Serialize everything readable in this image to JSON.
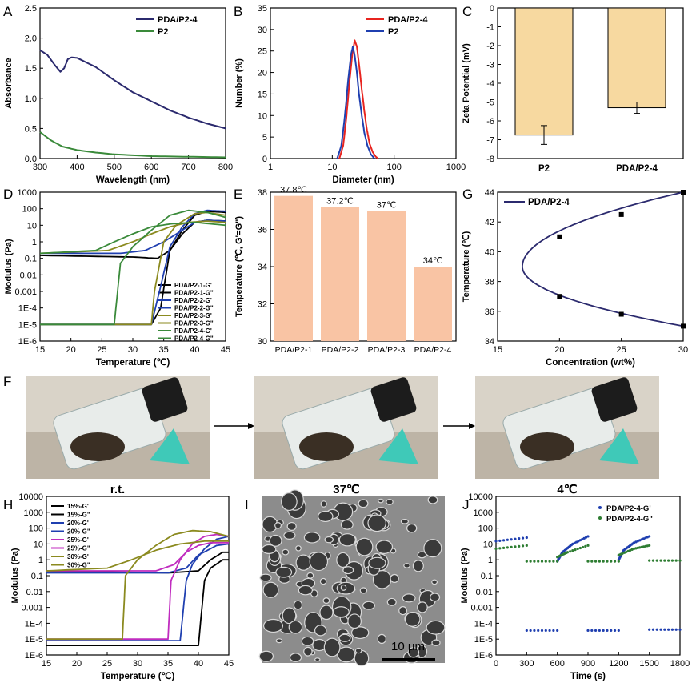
{
  "colors": {
    "bar_fill": "#f7d9a0",
    "bar_fill_e": "#f9c4a4",
    "red": "#e8241f",
    "blue": "#1f3fb0",
    "navy": "#2b2a6e",
    "green": "#3a8a3a",
    "black": "#000000",
    "olive": "#8b8a1f",
    "magenta": "#c02cbf",
    "darkgreen": "#2e7d32"
  },
  "panel_letters": {
    "A": "A",
    "B": "B",
    "C": "C",
    "D": "D",
    "E": "E",
    "F": "F",
    "G": "G",
    "H": "H",
    "I": "I",
    "J": "J"
  },
  "photo_captions": [
    "r.t.",
    "37℃",
    "4℃"
  ],
  "scale_bar": "10 μm",
  "chart_data": [
    {
      "panel": "A",
      "type": "line",
      "xlabel": "Wavelength (nm)",
      "ylabel": "Absorbance",
      "xlim": [
        300,
        800
      ],
      "ylim": [
        0,
        2.5
      ],
      "xticks": [
        "300",
        "400",
        "500",
        "600",
        "700",
        "800"
      ],
      "yticks": [
        "0.0",
        "0.5",
        "1.0",
        "1.5",
        "2.0",
        "2.5"
      ],
      "legend_position": "top-right",
      "series": [
        {
          "name": "PDA/P2-4",
          "color": "navy",
          "x": [
            300,
            320,
            340,
            355,
            365,
            375,
            385,
            400,
            450,
            500,
            550,
            600,
            650,
            700,
            750,
            800
          ],
          "y": [
            1.8,
            1.72,
            1.55,
            1.44,
            1.5,
            1.65,
            1.68,
            1.67,
            1.52,
            1.3,
            1.1,
            0.95,
            0.8,
            0.68,
            0.58,
            0.5
          ]
        },
        {
          "name": "P2",
          "color": "green",
          "x": [
            300,
            330,
            360,
            400,
            450,
            500,
            600,
            700,
            800
          ],
          "y": [
            0.44,
            0.3,
            0.2,
            0.14,
            0.1,
            0.07,
            0.04,
            0.03,
            0.02
          ]
        }
      ]
    },
    {
      "panel": "B",
      "type": "line",
      "xlabel": "Diameter (nm)",
      "ylabel": "Number (%)",
      "xscale": "log",
      "xlim": [
        1,
        1000
      ],
      "ylim": [
        0,
        35
      ],
      "xticks": [
        "1",
        "10",
        "100",
        "1000"
      ],
      "yticks": [
        "0",
        "5",
        "10",
        "15",
        "20",
        "25",
        "30",
        "35"
      ],
      "legend_position": "top-right",
      "series": [
        {
          "name": "PDA/P2-4",
          "color": "red",
          "x": [
            13,
            15,
            17,
            19,
            21,
            23,
            25,
            27,
            30,
            33,
            36,
            40,
            45,
            50,
            55
          ],
          "y": [
            0,
            3,
            10,
            18,
            24,
            27.5,
            26,
            22,
            16,
            11,
            7,
            3.5,
            1.5,
            0.5,
            0
          ]
        },
        {
          "name": "P2",
          "color": "blue",
          "x": [
            12,
            14,
            16,
            18,
            20,
            21.5,
            23,
            25,
            27,
            30,
            33,
            37,
            42,
            48
          ],
          "y": [
            0,
            3,
            10,
            18,
            24,
            26,
            24,
            20,
            15,
            10,
            6,
            3,
            1,
            0
          ]
        }
      ]
    },
    {
      "panel": "C",
      "type": "bar",
      "xlabel": "",
      "ylabel": "Zeta Potential (mV)",
      "ylim": [
        -8,
        0
      ],
      "yticks": [
        "0",
        "-1",
        "-2",
        "-3",
        "-4",
        "-5",
        "-6",
        "-7",
        "-8"
      ],
      "categories": [
        "P2",
        "PDA/P2-4"
      ],
      "values": [
        -6.75,
        -5.3
      ],
      "errors": [
        0.5,
        0.3
      ]
    },
    {
      "panel": "D",
      "type": "line",
      "xlabel": "Temperature (℃)",
      "ylabel": "Modulus (Pa)",
      "yscale": "log",
      "xlim": [
        15,
        45
      ],
      "ylim": [
        1e-06,
        1000
      ],
      "xticks": [
        "15",
        "20",
        "25",
        "30",
        "35",
        "40",
        "45"
      ],
      "yticks": [
        "1E-6",
        "1E-5",
        "1E-4",
        "0.001",
        "0.01",
        "0.1",
        "1",
        "10",
        "100",
        "1000"
      ],
      "series": [
        {
          "name": "PDA/P2-1-G'",
          "color": "black",
          "x": [
            15,
            33,
            34.5,
            36,
            38,
            40,
            42,
            45
          ],
          "y": [
            1e-05,
            1e-05,
            0.0001,
            0.3,
            5,
            40,
            70,
            60
          ]
        },
        {
          "name": "PDA/P2-1-G\"",
          "color": "black",
          "x": [
            15,
            30,
            34,
            36,
            38,
            40,
            42,
            45
          ],
          "y": [
            0.15,
            0.12,
            0.1,
            0.3,
            3,
            15,
            20,
            18
          ]
        },
        {
          "name": "PDA/P2-2-G'",
          "color": "blue",
          "x": [
            15,
            33,
            34.5,
            36,
            38,
            40,
            42,
            45
          ],
          "y": [
            1e-05,
            1e-05,
            0.002,
            0.5,
            8,
            50,
            80,
            70
          ]
        },
        {
          "name": "PDA/P2-2-G\"",
          "color": "blue",
          "x": [
            15,
            28,
            32,
            35,
            38,
            40,
            42,
            45
          ],
          "y": [
            0.2,
            0.2,
            0.3,
            1,
            5,
            15,
            20,
            18
          ]
        },
        {
          "name": "PDA/P2-3-G'",
          "color": "olive",
          "x": [
            15,
            33,
            33.5,
            35,
            37,
            40,
            42,
            45
          ],
          "y": [
            1e-05,
            1e-05,
            0.001,
            1,
            10,
            50,
            60,
            40
          ]
        },
        {
          "name": "PDA/P2-3-G\"",
          "color": "olive",
          "x": [
            15,
            26,
            30,
            33,
            36,
            39,
            42,
            45
          ],
          "y": [
            0.2,
            0.3,
            1,
            3,
            8,
            15,
            18,
            15
          ]
        },
        {
          "name": "PDA/P2-4-G'",
          "color": "green",
          "x": [
            15,
            27,
            28,
            30,
            33,
            36,
            39,
            42,
            45
          ],
          "y": [
            1e-05,
            1e-05,
            0.05,
            0.5,
            5,
            40,
            80,
            60,
            30
          ]
        },
        {
          "name": "PDA/P2-4-G\"",
          "color": "green",
          "x": [
            15,
            24,
            27,
            30,
            33,
            36,
            40,
            45
          ],
          "y": [
            0.2,
            0.3,
            1,
            3,
            8,
            12,
            15,
            10
          ]
        }
      ]
    },
    {
      "panel": "E",
      "type": "bar",
      "xlabel": "",
      "ylabel": "Temperature (℃, G'=G\")",
      "ylim": [
        30,
        38
      ],
      "yticks": [
        "30",
        "32",
        "34",
        "36",
        "38"
      ],
      "categories": [
        "PDA/P2-1",
        "PDA/P2-2",
        "PDA/P2-3",
        "PDA/P2-4"
      ],
      "values": [
        37.8,
        37.2,
        37,
        34
      ],
      "data_labels": [
        "37.8℃",
        "37.2℃",
        "37℃",
        "34℃"
      ]
    },
    {
      "panel": "G",
      "type": "line",
      "xlabel": "Concentration (wt%)",
      "ylabel": "Temperature (℃)",
      "xlim": [
        15,
        30
      ],
      "ylim": [
        34,
        44
      ],
      "xticks": [
        "15",
        "20",
        "25",
        "30"
      ],
      "yticks": [
        "34",
        "36",
        "38",
        "40",
        "42",
        "44"
      ],
      "legend_position": "top-left",
      "series": [
        {
          "name": "PDA/P2-4",
          "color": "navy",
          "points": [
            [
              20,
              41
            ],
            [
              25,
              42.5
            ],
            [
              30,
              44
            ],
            [
              20,
              37
            ],
            [
              25,
              35.8
            ],
            [
              30,
              35
            ]
          ],
          "vertex": [
            17,
            39
          ]
        }
      ]
    },
    {
      "panel": "H",
      "type": "line",
      "xlabel": "Temperature (℃)",
      "ylabel": "Modulus (Pa)",
      "yscale": "log",
      "xlim": [
        15,
        45
      ],
      "ylim": [
        1e-06,
        10000
      ],
      "xticks": [
        "15",
        "20",
        "25",
        "30",
        "35",
        "40",
        "45"
      ],
      "yticks": [
        "1E-6",
        "1E-5",
        "1E-4",
        "0.001",
        "0.01",
        "0.1",
        "1",
        "10",
        "100",
        "1000",
        "10000"
      ],
      "series": [
        {
          "name": "15%-G'",
          "color": "black",
          "x": [
            15,
            40,
            41,
            42,
            44,
            45
          ],
          "y": [
            4e-06,
            4e-06,
            0.05,
            0.3,
            1,
            1
          ]
        },
        {
          "name": "15%-G\"",
          "color": "black",
          "x": [
            15,
            35,
            40,
            42,
            44,
            45
          ],
          "y": [
            0.2,
            0.15,
            0.2,
            1,
            3,
            3
          ]
        },
        {
          "name": "20%-G'",
          "color": "blue",
          "x": [
            15,
            37,
            38,
            39,
            41,
            43,
            45
          ],
          "y": [
            8e-06,
            8e-06,
            0.05,
            0.5,
            5,
            20,
            30
          ]
        },
        {
          "name": "20%-G\"",
          "color": "blue",
          "x": [
            15,
            35,
            38,
            40,
            43,
            45
          ],
          "y": [
            0.15,
            0.15,
            0.3,
            2,
            8,
            10
          ]
        },
        {
          "name": "25%-G'",
          "color": "magenta",
          "x": [
            15,
            35,
            35.5,
            37,
            39,
            41,
            43,
            45
          ],
          "y": [
            1e-05,
            1e-05,
            0.05,
            1,
            10,
            30,
            40,
            30
          ]
        },
        {
          "name": "25%-G\"",
          "color": "magenta",
          "x": [
            15,
            33,
            36,
            38,
            40,
            42,
            45
          ],
          "y": [
            0.2,
            0.2,
            0.5,
            3,
            8,
            12,
            12
          ]
        },
        {
          "name": "30%-G'",
          "color": "olive",
          "x": [
            15,
            27.5,
            28,
            30,
            33,
            36,
            39,
            42,
            45
          ],
          "y": [
            1e-05,
            1e-05,
            0.1,
            1,
            8,
            40,
            70,
            60,
            30
          ]
        },
        {
          "name": "30%-G\"",
          "color": "olive",
          "x": [
            15,
            25,
            29,
            33,
            37,
            41,
            45
          ],
          "y": [
            0.2,
            0.3,
            1,
            4,
            10,
            15,
            15
          ]
        }
      ]
    },
    {
      "panel": "J",
      "type": "scatter",
      "xlabel": "Time (s)",
      "ylabel": "Modulus (Pa)",
      "yscale": "log",
      "xlim": [
        0,
        1800
      ],
      "ylim": [
        1e-06,
        10000
      ],
      "xticks": [
        "0",
        "300",
        "600",
        "900",
        "1200",
        "1500",
        "1800"
      ],
      "yticks": [
        "1E-6",
        "1E-5",
        "1E-4",
        "0.001",
        "0.01",
        "0.1",
        "1",
        "10",
        "100",
        "1000",
        "10000"
      ],
      "legend_position": "top-right",
      "series": [
        {
          "name": "PDA/P2-4-G'",
          "color": "blue",
          "segments": [
            [
              [
                0,
                15
              ],
              [
                300,
                25
              ]
            ],
            [
              [
                300,
                3.5e-05
              ],
              [
                600,
                3.5e-05
              ]
            ],
            [
              [
                600,
                0.8
              ],
              [
                650,
                3
              ],
              [
                750,
                10
              ],
              [
                900,
                30
              ]
            ],
            [
              [
                900,
                3.5e-05
              ],
              [
                1200,
                3.5e-05
              ]
            ],
            [
              [
                1200,
                1
              ],
              [
                1250,
                4
              ],
              [
                1350,
                12
              ],
              [
                1500,
                30
              ]
            ],
            [
              [
                1500,
                4e-05
              ],
              [
                1800,
                4e-05
              ]
            ]
          ]
        },
        {
          "name": "PDA/P2-4-G\"",
          "color": "darkgreen",
          "segments": [
            [
              [
                0,
                5
              ],
              [
                300,
                8
              ]
            ],
            [
              [
                300,
                0.8
              ],
              [
                600,
                0.8
              ]
            ],
            [
              [
                600,
                1.5
              ],
              [
                700,
                3
              ],
              [
                900,
                8
              ]
            ],
            [
              [
                900,
                0.8
              ],
              [
                1200,
                0.8
              ]
            ],
            [
              [
                1200,
                2
              ],
              [
                1350,
                5
              ],
              [
                1500,
                8
              ]
            ],
            [
              [
                1500,
                0.9
              ],
              [
                1800,
                0.9
              ]
            ]
          ]
        }
      ]
    }
  ]
}
